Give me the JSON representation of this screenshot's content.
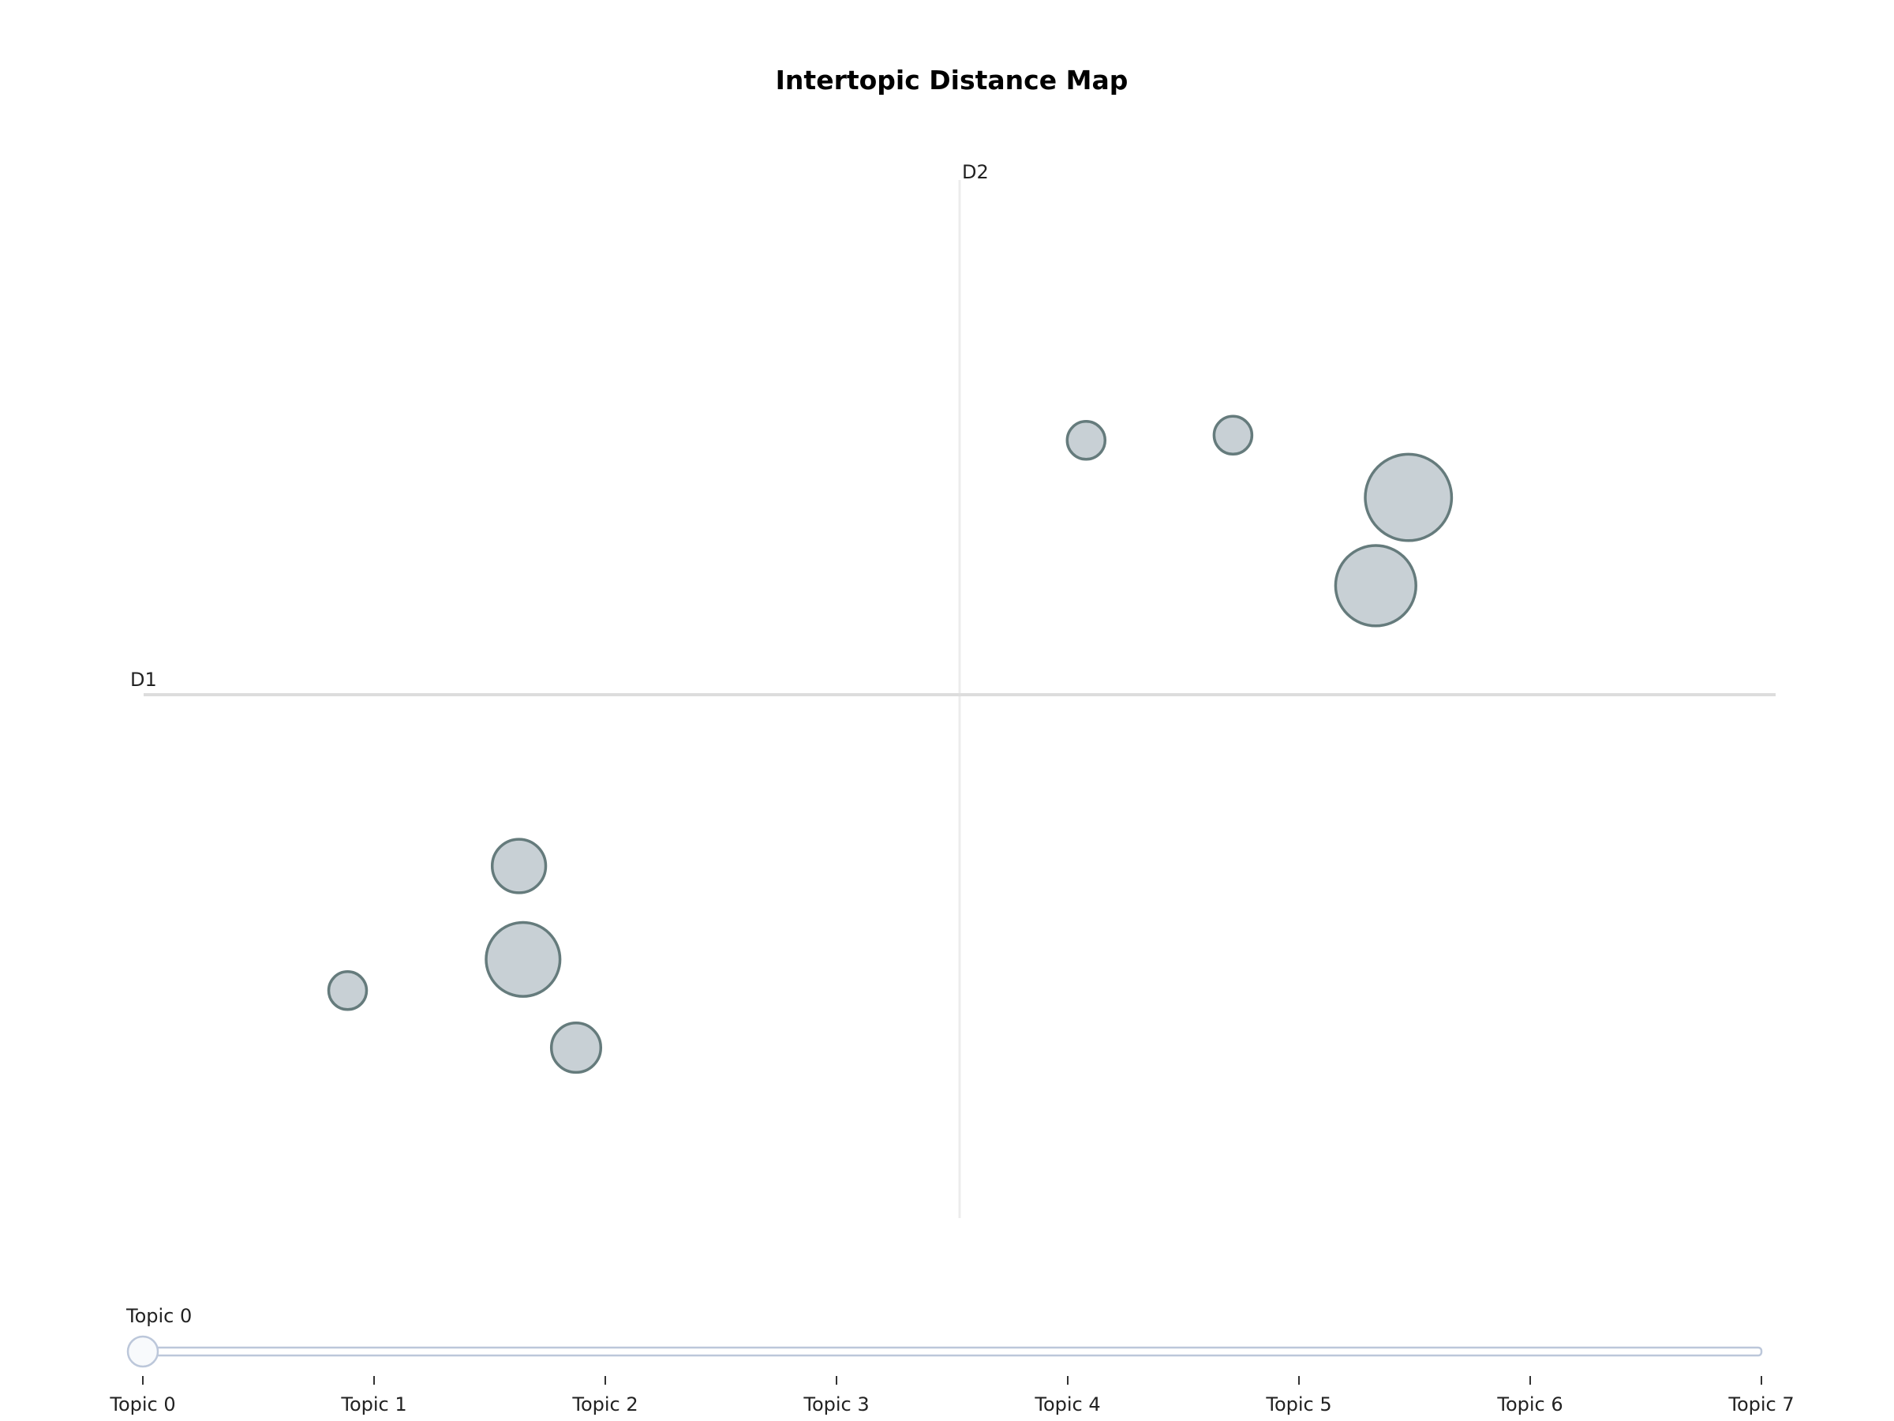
{
  "colors": {
    "bubble_fill": "#c8d0d5",
    "bubble_stroke": "#657b7c",
    "axis_line": "#dddddd",
    "slider_track_stroke": "#bcc7da",
    "slider_track_fill": "#ffffff",
    "slider_handle_fill": "#f8fafc",
    "slider_handle_stroke": "#bcc7da",
    "text": "#222222"
  },
  "chart_data": {
    "type": "scatter",
    "title": "Intertopic Distance Map",
    "xlabel": "D1",
    "ylabel": "D2",
    "xlim": [
      -10,
      10
    ],
    "ylim": [
      -10,
      10
    ],
    "grid": false,
    "points": [
      {
        "x": 1.55,
        "y": 4.9,
        "size": 1.0
      },
      {
        "x": 3.35,
        "y": 5.0,
        "size": 1.0
      },
      {
        "x": 5.5,
        "y": 3.8,
        "size": 5.2
      },
      {
        "x": 5.1,
        "y": 2.1,
        "size": 4.5
      },
      {
        "x": -5.4,
        "y": -3.3,
        "size": 2.0
      },
      {
        "x": -5.35,
        "y": -5.1,
        "size": 3.8
      },
      {
        "x": -7.5,
        "y": -5.7,
        "size": 1.0
      },
      {
        "x": -4.7,
        "y": -6.8,
        "size": 1.7
      }
    ]
  },
  "slider": {
    "current_label": "Topic 0",
    "selected_index": 0,
    "steps": [
      "Topic 0",
      "Topic 1",
      "Topic 2",
      "Topic 3",
      "Topic 4",
      "Topic 5",
      "Topic 6",
      "Topic 7"
    ]
  }
}
